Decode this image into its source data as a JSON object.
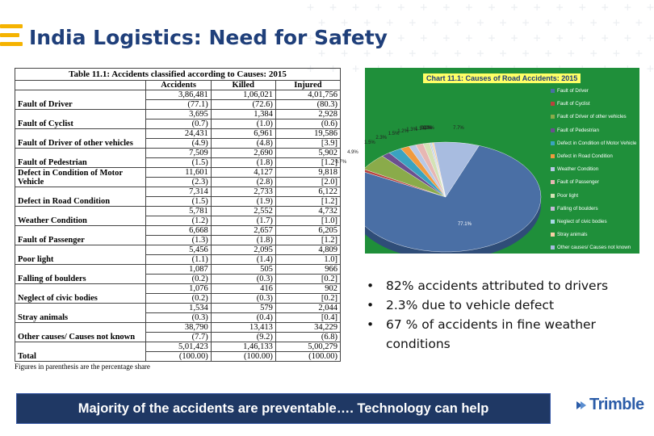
{
  "slide": {
    "title": "India Logistics: Need for Safety"
  },
  "table": {
    "caption": "Table 11.1: Accidents classified according to Causes: 2015",
    "headers": [
      "",
      "Accidents",
      "Killed",
      "Injured"
    ],
    "rows": [
      {
        "cause": "Fault of Driver",
        "accidents": "3,86,481",
        "killed": "1,06,021",
        "injured": "4,01,756",
        "pa": "(77.1)",
        "pk": "(72.6)",
        "pi": "(80.3)"
      },
      {
        "cause": "Fault of Cyclist",
        "accidents": "3,695",
        "killed": "1,384",
        "injured": "2,928",
        "pa": "(0.7)",
        "pk": "(1.0)",
        "pi": "(0.6)"
      },
      {
        "cause": "Fault of Driver of other vehicles",
        "accidents": "24,431",
        "killed": "6,961",
        "injured": "19,586",
        "pa": "(4.9)",
        "pk": "(4.8)",
        "pi": "[3.9]"
      },
      {
        "cause": "Fault of Pedestrian",
        "accidents": "7,509",
        "killed": "2,690",
        "injured": "5,902",
        "pa": "(1.5)",
        "pk": "(1.8)",
        "pi": "[1.2]"
      },
      {
        "cause": "Defect in Condition of Motor Vehicle",
        "accidents": "11,601",
        "killed": "4,127",
        "injured": "9,818",
        "pa": "(2.3)",
        "pk": "(2.8)",
        "pi": "[2.0]"
      },
      {
        "cause": "Defect in Road Condition",
        "accidents": "7,314",
        "killed": "2,733",
        "injured": "6,122",
        "pa": "(1.5)",
        "pk": "(1.9)",
        "pi": "[1.2]"
      },
      {
        "cause": "Weather Condition",
        "accidents": "5,781",
        "killed": "2,552",
        "injured": "4,732",
        "pa": "(1.2)",
        "pk": "(1.7)",
        "pi": "[1.0]"
      },
      {
        "cause": "Fault of Passenger",
        "accidents": "6,668",
        "killed": "2,657",
        "injured": "6,205",
        "pa": "(1.3)",
        "pk": "(1.8)",
        "pi": "[1.2]"
      },
      {
        "cause": "Poor light",
        "accidents": "5,456",
        "killed": "2,095",
        "injured": "4,809",
        "pa": "(1.1)",
        "pk": "(1.4)",
        "pi": "1.0]"
      },
      {
        "cause": "Falling of boulders",
        "accidents": "1,087",
        "killed": "505",
        "injured": "966",
        "pa": "(0.2)",
        "pk": "(0.3)",
        "pi": "[0.2]"
      },
      {
        "cause": "Neglect of civic bodies",
        "accidents": "1,076",
        "killed": "416",
        "injured": "902",
        "pa": "(0.2)",
        "pk": "(0.3)",
        "pi": "[0.2]"
      },
      {
        "cause": "Stray animals",
        "accidents": "1,534",
        "killed": "579",
        "injured": "2,044",
        "pa": "(0.3)",
        "pk": "(0.4)",
        "pi": "[0.4]"
      },
      {
        "cause": "Other causes/ Causes not known",
        "accidents": "38,790",
        "killed": "13,413",
        "injured": "34,229",
        "pa": "(7.7)",
        "pk": "(9.2)",
        "pi": "(6.8)"
      },
      {
        "cause": "Total",
        "accidents": "5,01,423",
        "killed": "1,46,133",
        "injured": "5,00,279",
        "pa": "(100.00)",
        "pk": "(100.00)",
        "pi": "(100.00)"
      }
    ],
    "note": "Figures in parenthesis are the percentage share"
  },
  "chart_data": {
    "type": "pie",
    "title": "Chart 11.1: Causes of Road Accidents: 2015",
    "categories": [
      "Fault of Driver",
      "Fault of Cyclist",
      "Fault of Driver of other vehicles",
      "Fault of Pedestrian",
      "Defect in Condition of Motor Vehicle",
      "Defect in Road Condition",
      "Weather Condition",
      "Fault of Passenger",
      "Poor light",
      "Falling of boulders",
      "Neglect of civic bodies",
      "Stray animals",
      "Other causes/ Causes not known"
    ],
    "values": [
      77.1,
      0.7,
      4.9,
      1.5,
      2.3,
      1.5,
      1.2,
      1.3,
      1.1,
      0.2,
      0.2,
      0.3,
      7.7
    ],
    "labels": [
      "77.1%",
      "0.7%",
      "4.9%",
      "1.5%",
      "2.3%",
      "1.5%",
      "1.2%",
      "1.3%",
      "1.1%",
      "0.2%",
      "0.2%",
      "0.3%",
      "7.7%"
    ],
    "colors": [
      "#4a6fa5",
      "#b9413c",
      "#8aab4a",
      "#6b4f8f",
      "#3aa3c0",
      "#f09a3e",
      "#b8c8e6",
      "#e7b7b3",
      "#d4e2b5",
      "#c6b9d8",
      "#a9d9e8",
      "#f8cfa6",
      "#a8bce0"
    ],
    "legend_position": "right"
  },
  "bullets": [
    "82% accidents attributed to drivers",
    "2.3% due to vehicle defect",
    "67 % of accidents in fine weather conditions"
  ],
  "bullet_glyph": "•",
  "banner": "Majority of the accidents are preventable…. Technology can help",
  "logo": {
    "text": "Trimble",
    "color": "#2b5ca8"
  },
  "colors": {
    "title": "#1f3f7a",
    "accent": "#f5b301",
    "banner_bg": "#1f3864",
    "chart_bg": "#1f8f3a"
  }
}
